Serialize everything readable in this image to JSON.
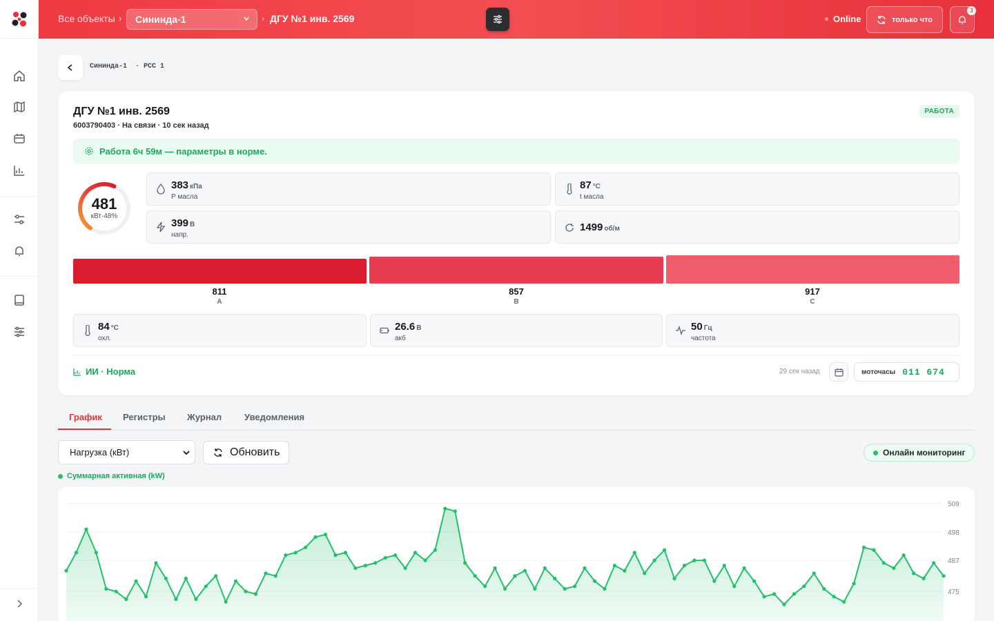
{
  "topbar": {
    "crumb_all": "Все объекты",
    "crumb_sep": "›",
    "object_select": "Сининда-1",
    "crumb_current": "ДГУ №1 инв. 2569",
    "online": "Online",
    "refresh_label": "только что",
    "notif_count": "3",
    "accent": "#ef3a43"
  },
  "subcrumb": "Сининда-1  · РСС 1",
  "device": {
    "title": "ДГУ №1 инв. 2569",
    "subtitle": "6003790403 · На связи · 10 сек назад",
    "badge": "РАБОТА",
    "status_text": "Работа 6ч 59м — параметры в норме."
  },
  "gauge": {
    "value": "481",
    "sub": "кВт·48%",
    "fraction": 0.48
  },
  "metrics": {
    "oil_pressure": {
      "value": "383",
      "unit": "кПа",
      "label": "Р масла",
      "icon": "drop-icon"
    },
    "oil_temp": {
      "value": "87",
      "unit": "°C",
      "label": "t масла",
      "icon": "thermometer-icon"
    },
    "voltage": {
      "value": "399",
      "unit": "В",
      "label": "напр.",
      "icon": "bolt-icon"
    },
    "rpm": {
      "value": "1499",
      "unit": "об/м",
      "label": "",
      "icon": "rotate-icon"
    }
  },
  "phases": [
    {
      "value": "811",
      "label": "A",
      "color": "#d91c2e"
    },
    {
      "value": "857",
      "label": "B",
      "color": "#e73d50"
    },
    {
      "value": "917",
      "label": "C",
      "color": "#f05d6c"
    }
  ],
  "metrics2": {
    "coolant": {
      "value": "84",
      "unit": "°C",
      "label": "охл.",
      "icon": "thermometer-icon"
    },
    "battery": {
      "value": "26.6",
      "unit": "В",
      "label": "акб",
      "icon": "battery-icon"
    },
    "frequency": {
      "value": "50",
      "unit": "Гц",
      "label": "частота",
      "icon": "wave-icon"
    }
  },
  "ai_status": "ИИ · Норма",
  "last_update": "29 сек назад",
  "motohours": {
    "label": "моточасы",
    "value": "011 674"
  },
  "tabs": [
    "График",
    "Регистры",
    "Журнал",
    "Уведомления"
  ],
  "chart_controls": {
    "select_value": "Нагрузка (кВт)",
    "refresh_label": "Обновить",
    "monitor_label": "Онлайн мониторинг",
    "legend": "Суммарная активная (kW)"
  },
  "chart_data": {
    "type": "area",
    "series": [
      {
        "name": "Суммарная активная (kW)",
        "color": "#22c06a",
        "values": [
          483,
          490,
          499,
          490,
          476,
          475,
          472,
          479,
          473,
          486,
          480,
          472,
          480,
          472,
          477,
          481,
          471,
          479,
          475,
          474,
          482,
          481,
          489,
          490,
          492,
          496,
          497,
          489,
          490,
          484,
          485,
          486,
          488,
          489,
          484,
          490,
          487,
          491,
          507,
          506,
          486,
          481,
          477,
          484,
          476,
          481,
          483,
          476,
          484,
          480,
          476,
          477,
          484,
          479,
          476,
          485,
          483,
          490,
          482,
          487,
          491,
          480,
          485,
          487,
          487,
          479,
          485,
          477,
          484,
          479,
          473,
          474,
          470,
          474,
          477,
          482,
          476,
          473,
          471,
          478,
          492,
          491,
          486,
          484,
          489,
          482,
          480,
          486,
          481
        ]
      }
    ],
    "y_ticks": [
      "509",
      "498",
      "487",
      "475"
    ],
    "ylim": [
      462,
      511
    ],
    "grid": true
  }
}
